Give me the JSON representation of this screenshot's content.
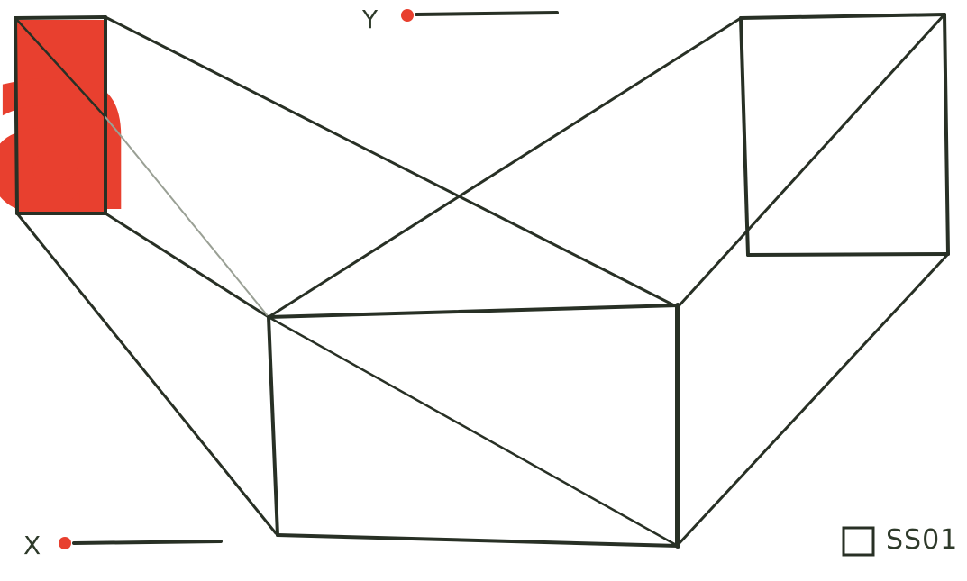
{
  "axes": {
    "y": {
      "label": "Y",
      "marker": "red-dot",
      "marker_color": "#e8402f"
    },
    "x": {
      "label": "X",
      "marker": "red-dot",
      "marker_color": "#e8402f"
    }
  },
  "glyph": {
    "character": "a",
    "fill_color": "#e8402f"
  },
  "code": {
    "checkbox_icon": "empty-square-icon",
    "text": "SS01"
  },
  "colors": {
    "line": "#283025",
    "light_line": "#9aa095",
    "accent": "#e8402f"
  }
}
